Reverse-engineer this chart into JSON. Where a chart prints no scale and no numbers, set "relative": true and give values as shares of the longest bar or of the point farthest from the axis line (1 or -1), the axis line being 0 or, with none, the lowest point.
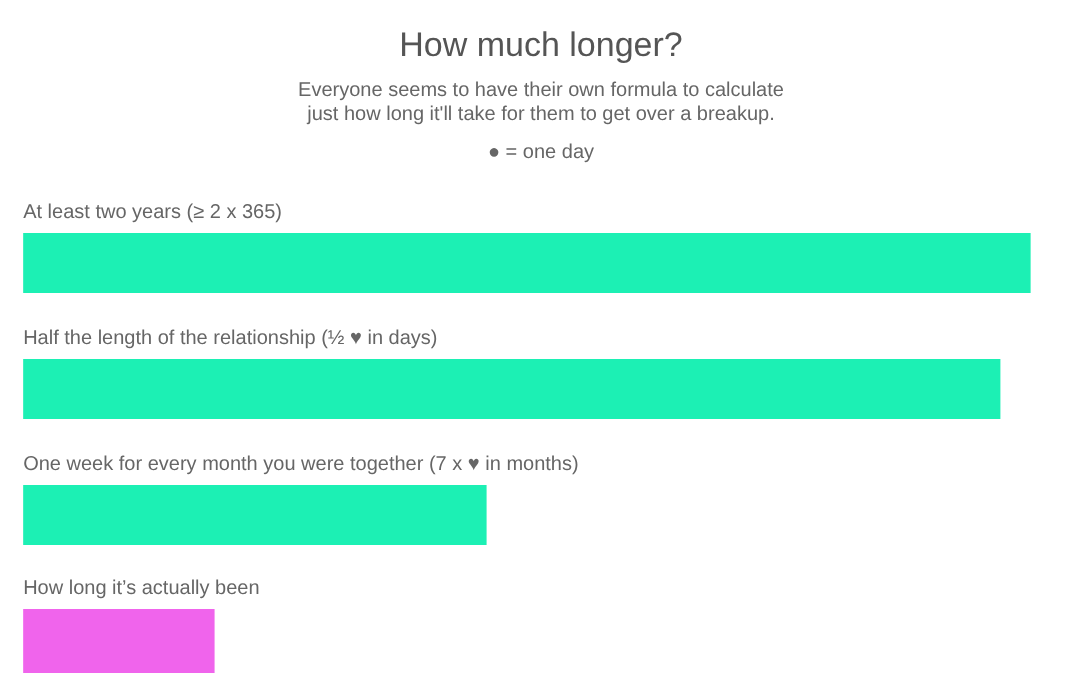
{
  "chart_data": {
    "type": "bar",
    "orientation": "horizontal",
    "relative": true,
    "title": "How much longer?",
    "subtitle": "Everyone seems to have their own formula to calculate\njust how long it'll take for them to get over a breakup.",
    "annotations": [
      "● = one day"
    ],
    "categories": [
      "At least two years (≥ 2 x 365)",
      "Half the length of the relationship (½ ♥ in days)",
      "One week for every month you were together (7 x ♥ in months)",
      "How long it’s actually been"
    ],
    "values": [
      1,
      0.97,
      0.46,
      0.19
    ],
    "colors": [
      "#1cf0b4",
      "#1cf0b4",
      "#1cf0b4",
      "#f064ec"
    ]
  }
}
